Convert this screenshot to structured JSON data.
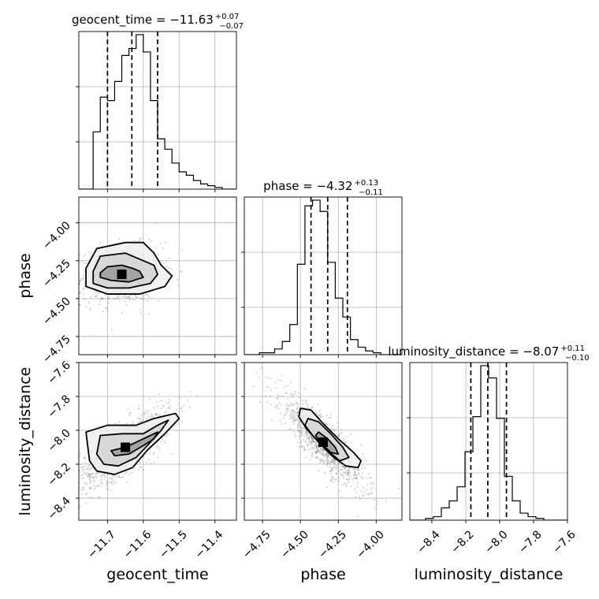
{
  "chart_data": {
    "type": "corner",
    "grid": true,
    "parameters": [
      {
        "name": "geocent_time",
        "xlim": [
          -11.78,
          -11.34
        ],
        "ticks": [
          -11.7,
          -11.6,
          -11.5,
          -11.4
        ],
        "tick_labels": [
          "−11.7",
          "−11.6",
          "−11.5",
          "−11.4"
        ],
        "title": "geocent_time = −11.63",
        "title_plus": "+0.07",
        "title_minus": "−0.07",
        "quantiles": [
          -11.7,
          -11.632,
          -11.56
        ],
        "hist": {
          "edges_start": -11.78,
          "bin_width": 0.02,
          "counts": [
            0,
            0,
            33,
            53,
            51,
            62,
            77,
            81,
            89,
            79,
            51,
            29,
            23,
            15,
            10,
            8,
            5,
            3,
            2,
            1,
            0,
            0
          ]
        }
      },
      {
        "name": "phase",
        "xlim": [
          -4.87,
          -3.83
        ],
        "ticks": [
          -4.75,
          -4.5,
          -4.25,
          -4.0
        ],
        "tick_labels": [
          "−4.75",
          "−4.50",
          "−4.25",
          "−4.00"
        ],
        "y_tick_labels": [
          "−4.00",
          "−4.25",
          "−4.50",
          "−4.75"
        ],
        "title": "phase = −4.32",
        "title_plus": "+0.13",
        "title_minus": "−0.11",
        "quantiles": [
          -4.43,
          -4.32,
          -4.19
        ],
        "hist": {
          "edges_start": -4.87,
          "bin_width": 0.05,
          "counts": [
            0,
            0,
            1,
            1,
            3,
            7,
            16,
            48,
            79,
            82,
            76,
            49,
            30,
            20,
            8,
            4,
            2,
            1,
            0,
            0,
            0
          ]
        }
      },
      {
        "name": "luminosity_distance",
        "xlim": [
          -8.53,
          -7.6
        ],
        "ticks": [
          -8.4,
          -8.2,
          -8.0,
          -7.8,
          -7.6
        ],
        "tick_labels": [
          "−8.4",
          "−8.2",
          "−8.0",
          "−7.8",
          "−7.6"
        ],
        "y_tick_labels": [
          "−7.6",
          "−7.8",
          "−8.0",
          "−8.2",
          "−8.4"
        ],
        "title": "luminosity_distance = −8.07",
        "title_plus": "+0.11",
        "title_minus": "−0.10",
        "quantiles": [
          -8.17,
          -8.07,
          -7.96
        ],
        "hist": {
          "edges_start": -8.53,
          "bin_width": 0.0465,
          "counts": [
            0,
            0,
            1,
            2,
            7,
            11,
            19,
            39,
            59,
            88,
            81,
            58,
            25,
            11,
            4,
            2,
            1,
            0,
            0,
            0
          ]
        }
      }
    ],
    "pairs": [
      {
        "x_param": "geocent_time",
        "y_param": "phase",
        "peak": [
          -11.66,
          -4.34
        ],
        "sigma": [
          0.045,
          0.075
        ],
        "corr": 0.12,
        "cloud_count": 1100,
        "contours": [
          {
            "level": 0.39,
            "points": [
              [
                -11.72,
                -4.33
              ],
              [
                -11.7,
                -4.29
              ],
              [
                -11.66,
                -4.28
              ],
              [
                -11.63,
                -4.3
              ],
              [
                -11.61,
                -4.32
              ],
              [
                -11.6,
                -4.36
              ],
              [
                -11.64,
                -4.39
              ],
              [
                -11.69,
                -4.38
              ],
              [
                -11.72,
                -4.36
              ]
            ]
          },
          {
            "level": 0.86,
            "points": [
              [
                -11.74,
                -4.32
              ],
              [
                -11.72,
                -4.22
              ],
              [
                -11.65,
                -4.2
              ],
              [
                -11.62,
                -4.23
              ],
              [
                -11.57,
                -4.28
              ],
              [
                -11.56,
                -4.34
              ],
              [
                -11.58,
                -4.4
              ],
              [
                -11.64,
                -4.43
              ],
              [
                -11.7,
                -4.43
              ],
              [
                -11.74,
                -4.4
              ]
            ]
          },
          {
            "level": 0.99,
            "points": [
              [
                -11.76,
                -4.3
              ],
              [
                -11.73,
                -4.17
              ],
              [
                -11.65,
                -4.13
              ],
              [
                -11.6,
                -4.13
              ],
              [
                -11.57,
                -4.2
              ],
              [
                -11.55,
                -4.28
              ],
              [
                -11.52,
                -4.35
              ],
              [
                -11.54,
                -4.42
              ],
              [
                -11.61,
                -4.47
              ],
              [
                -11.7,
                -4.47
              ],
              [
                -11.76,
                -4.42
              ]
            ]
          }
        ]
      },
      {
        "x_param": "geocent_time",
        "y_param": "luminosity_distance",
        "peak": [
          -11.65,
          -8.1
        ],
        "sigma": [
          0.05,
          0.09
        ],
        "corr": 0.75,
        "cloud_count": 1100,
        "contours": [
          {
            "level": 0.39,
            "points": [
              [
                -11.69,
                -8.12
              ],
              [
                -11.65,
                -8.1
              ],
              [
                -11.61,
                -8.06
              ],
              [
                -11.58,
                -8.03
              ],
              [
                -11.56,
                -8.01
              ],
              [
                -11.57,
                -8.05
              ],
              [
                -11.6,
                -8.09
              ],
              [
                -11.64,
                -8.14
              ],
              [
                -11.68,
                -8.15
              ]
            ]
          },
          {
            "level": 0.86,
            "points": [
              [
                -11.73,
                -8.14
              ],
              [
                -11.72,
                -8.03
              ],
              [
                -11.66,
                -8.02
              ],
              [
                -11.6,
                -8.02
              ],
              [
                -11.56,
                -7.97
              ],
              [
                -11.53,
                -7.94
              ],
              [
                -11.55,
                -8.0
              ],
              [
                -11.58,
                -8.07
              ],
              [
                -11.62,
                -8.16
              ],
              [
                -11.67,
                -8.21
              ],
              [
                -11.71,
                -8.2
              ]
            ]
          },
          {
            "level": 0.99,
            "points": [
              [
                -11.75,
                -8.18
              ],
              [
                -11.76,
                -8.01
              ],
              [
                -11.7,
                -7.97
              ],
              [
                -11.62,
                -7.97
              ],
              [
                -11.57,
                -7.93
              ],
              [
                -11.51,
                -7.9
              ],
              [
                -11.5,
                -7.93
              ],
              [
                -11.54,
                -8.02
              ],
              [
                -11.59,
                -8.12
              ],
              [
                -11.63,
                -8.22
              ],
              [
                -11.68,
                -8.26
              ],
              [
                -11.73,
                -8.24
              ]
            ]
          }
        ]
      },
      {
        "x_param": "phase",
        "y_param": "luminosity_distance",
        "peak": [
          -4.35,
          -8.07
        ],
        "sigma": [
          0.11,
          0.11
        ],
        "corr": -0.86,
        "cloud_count": 1100,
        "contours": [
          {
            "level": 0.39,
            "points": [
              [
                -4.38,
                -8.01
              ],
              [
                -4.32,
                -8.05
              ],
              [
                -4.27,
                -8.1
              ],
              [
                -4.25,
                -8.14
              ],
              [
                -4.3,
                -8.13
              ],
              [
                -4.36,
                -8.08
              ],
              [
                -4.4,
                -8.03
              ]
            ]
          },
          {
            "level": 0.86,
            "points": [
              [
                -4.45,
                -7.93
              ],
              [
                -4.38,
                -7.95
              ],
              [
                -4.3,
                -8.02
              ],
              [
                -4.22,
                -8.1
              ],
              [
                -4.18,
                -8.16
              ],
              [
                -4.24,
                -8.18
              ],
              [
                -4.32,
                -8.12
              ],
              [
                -4.42,
                -8.03
              ],
              [
                -4.47,
                -7.97
              ]
            ]
          },
          {
            "level": 0.99,
            "points": [
              [
                -4.5,
                -7.87
              ],
              [
                -4.43,
                -7.88
              ],
              [
                -4.35,
                -7.96
              ],
              [
                -4.25,
                -8.05
              ],
              [
                -4.15,
                -8.13
              ],
              [
                -4.1,
                -8.18
              ],
              [
                -4.12,
                -8.22
              ],
              [
                -4.2,
                -8.21
              ],
              [
                -4.28,
                -8.16
              ],
              [
                -4.38,
                -8.07
              ],
              [
                -4.46,
                -7.99
              ],
              [
                -4.51,
                -7.92
              ]
            ]
          }
        ]
      }
    ]
  }
}
